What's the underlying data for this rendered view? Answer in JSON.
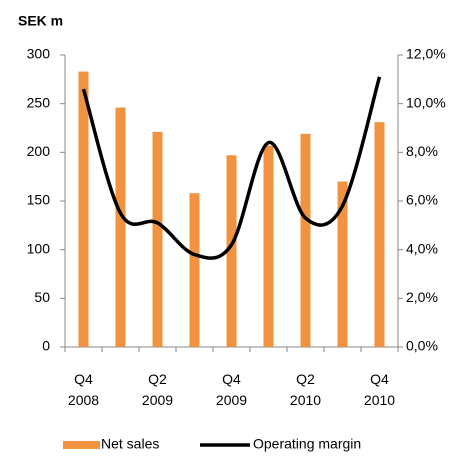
{
  "chart_data": {
    "type": "bar-line",
    "y_axis_label": "SEK m",
    "categories": [
      "Q4\n2008",
      null,
      "Q2\n2009",
      null,
      "Q4\n2009",
      null,
      "Q2\n2010",
      null,
      "Q4\n2010"
    ],
    "series": [
      {
        "name": "Net sales",
        "type": "bar",
        "color": "#f0923f",
        "values": [
          283,
          246,
          221,
          158,
          197,
          207,
          219,
          170,
          231
        ]
      },
      {
        "name": "Operating margin",
        "type": "line",
        "axis": "y2",
        "color": "#000000",
        "values": [
          10.6,
          5.5,
          5.1,
          3.8,
          4.2,
          8.4,
          5.3,
          5.8,
          11.1
        ]
      }
    ],
    "ylim": [
      0,
      300
    ],
    "yticks": [
      0,
      50,
      100,
      150,
      200,
      250,
      300
    ],
    "y2lim": [
      0,
      12
    ],
    "y2ticks": [
      {
        "value": 0,
        "label": "0,0%"
      },
      {
        "value": 2,
        "label": "2,0%"
      },
      {
        "value": 4,
        "label": "4,0%"
      },
      {
        "value": 6,
        "label": "6,0%"
      },
      {
        "value": 8,
        "label": "8,0%"
      },
      {
        "value": 10,
        "label": "10,0%"
      },
      {
        "value": 12,
        "label": "12,0%"
      }
    ],
    "legend": "bottom",
    "grid": false
  }
}
